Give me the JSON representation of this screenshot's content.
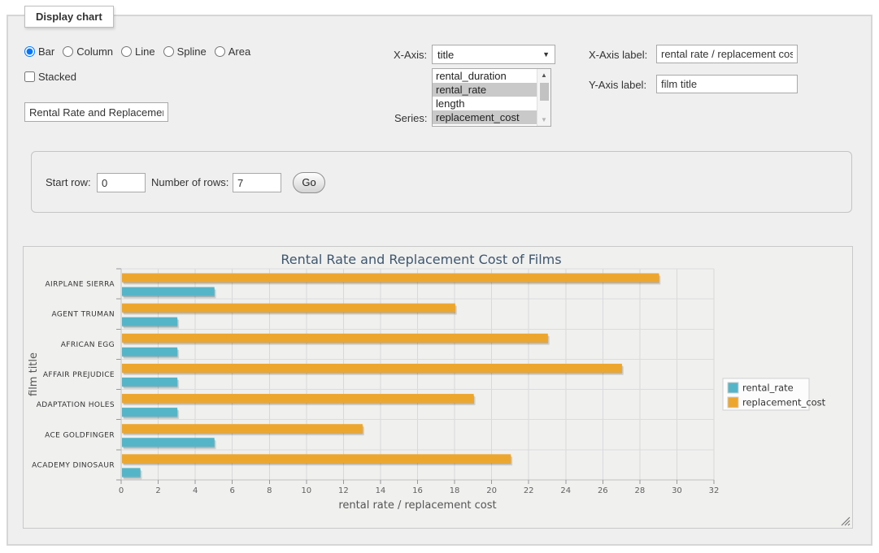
{
  "panel": {
    "legend_title": "Display chart"
  },
  "controls": {
    "chart_types": [
      {
        "label": "Bar",
        "selected": true
      },
      {
        "label": "Column",
        "selected": false
      },
      {
        "label": "Line",
        "selected": false
      },
      {
        "label": "Spline",
        "selected": false
      },
      {
        "label": "Area",
        "selected": false
      }
    ],
    "stacked": {
      "label": "Stacked",
      "checked": false
    },
    "chart_title_input": {
      "value": "Rental Rate and Replacement Cost of Films"
    },
    "x_axis": {
      "label": "X-Axis:",
      "selected_value": "title"
    },
    "series_select": {
      "label": "Series:",
      "options": [
        {
          "label": "rental_duration",
          "selected": false
        },
        {
          "label": "rental_rate",
          "selected": true
        },
        {
          "label": "length",
          "selected": false
        },
        {
          "label": "replacement_cost",
          "selected": true
        }
      ]
    },
    "x_axis_label": {
      "label": "X-Axis label:",
      "value": "rental rate / replacement cost"
    },
    "y_axis_label": {
      "label": "Y-Axis label:",
      "value": "film title"
    },
    "rows": {
      "start_label": "Start row:",
      "start_value": "0",
      "count_label": "Number of rows:",
      "count_value": "7",
      "go_label": "Go"
    }
  },
  "icons": {
    "dropdown_arrow": "▼",
    "scroll_up": "▲",
    "scroll_down": "▼"
  },
  "chart_data": {
    "type": "bar",
    "title": "Rental Rate and Replacement Cost of Films",
    "categories": [
      "AIRPLANE SIERRA",
      "AGENT TRUMAN",
      "AFRICAN EGG",
      "AFFAIR PREJUDICE",
      "ADAPTATION HOLES",
      "ACE GOLDFINGER",
      "ACADEMY DINOSAUR"
    ],
    "series": [
      {
        "name": "rental_rate",
        "color": "#55b5c8",
        "values": [
          4.99,
          2.99,
          2.99,
          2.99,
          2.99,
          4.99,
          0.99
        ]
      },
      {
        "name": "replacement_cost",
        "color": "#eda62d",
        "values": [
          28.99,
          17.99,
          22.99,
          26.99,
          18.99,
          12.99,
          20.99
        ]
      }
    ],
    "xlabel": "rental rate / replacement cost",
    "ylabel": "film title",
    "xlim": [
      0,
      32
    ],
    "xtick_step": 2,
    "grid": true,
    "legend_position": "right",
    "bar_group_order": "second-series-on-top",
    "colors": {
      "grid_line": "#d9d9d9",
      "category_line": "#dcdcdc",
      "axis_line": "#c0c0c0",
      "tick": "#999999",
      "title_text": "#3e576f",
      "label_text": "#333333",
      "tick_text": "#606060",
      "axis_title_text": "#555555",
      "legend_border": "#d0d0d0",
      "legend_bg": "#fcfcfc"
    }
  }
}
